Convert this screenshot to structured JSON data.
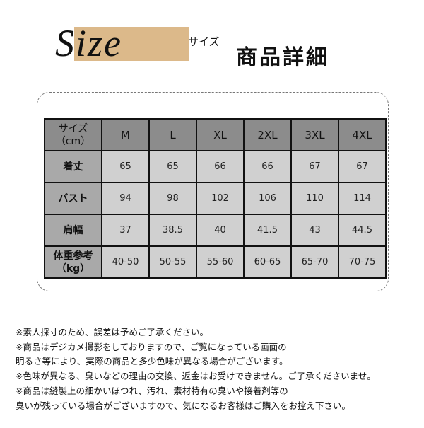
{
  "header": {
    "title": "Size",
    "subtitle": "サイズ",
    "heading": "商品詳細"
  },
  "table": {
    "header": {
      "label": [
        "サイズ",
        "（cm）"
      ],
      "sizes": [
        "M",
        "L",
        "XL",
        "2XL",
        "3XL",
        "4XL"
      ]
    },
    "rows": [
      {
        "label": [
          "着丈"
        ],
        "values": [
          "65",
          "65",
          "66",
          "66",
          "67",
          "67"
        ]
      },
      {
        "label": [
          "バスト"
        ],
        "values": [
          "94",
          "98",
          "102",
          "106",
          "110",
          "114"
        ]
      },
      {
        "label": [
          "肩幅"
        ],
        "values": [
          "37",
          "38.5",
          "40",
          "41.5",
          "43",
          "44.5"
        ]
      },
      {
        "label": [
          "体重参考",
          "（kg）"
        ],
        "values": [
          "40-50",
          "50-55",
          "55-60",
          "60-65",
          "65-70",
          "70-75"
        ]
      }
    ]
  },
  "notes": [
    "※素人採寸のため、誤差は予めご了承ください。",
    "※商品はデジカメ撮影をしておりますので、ご覧になっている画面の",
    "明るさ等により、実際の商品と多少色味が異なる場合がございます。",
    "※色味が異なる、臭いなどの理由の交換、返金はお受けできません。ご了承くださいませ。",
    "※商品は縫製上の細かいほつれ、汚れ、素材特有の臭いや接着剤等の",
    "臭いが残っている場合がございますので、気になるお客様はご購入をお控え下さい。"
  ]
}
